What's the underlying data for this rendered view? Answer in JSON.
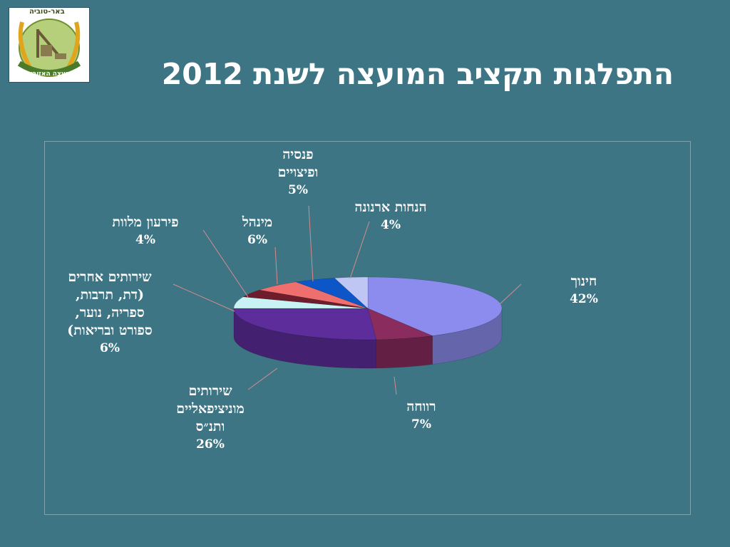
{
  "logo": {
    "top_text": "באר-טוביה",
    "bottom_text": "המועצה האזורית"
  },
  "title": "התפלגות תקציב המועצה לשנת 2012",
  "chart_data": {
    "type": "pie",
    "three_d": true,
    "slices": [
      {
        "label_lines": [
          "חינוך"
        ],
        "value": 42,
        "value_text": "42%",
        "color": "#8b8cee"
      },
      {
        "label_lines": [
          "רווחה"
        ],
        "value": 7,
        "value_text": "7%",
        "color": "#8a2d5e"
      },
      {
        "label_lines": [
          "שירותים",
          "מוניציפאליים",
          "ותנ״ס"
        ],
        "value": 26,
        "value_text": "26%",
        "color": "#5d2d9c"
      },
      {
        "label_lines": [
          "שירותים אחרים",
          "(דת, תרבות,",
          "ספריה, נוער,",
          "ספורט ובריאות)"
        ],
        "value": 6,
        "value_text": "6%",
        "color": "#c9f2f4"
      },
      {
        "label_lines": [
          "פירעון מלוות"
        ],
        "value": 4,
        "value_text": "4%",
        "color": "#6e1d2c"
      },
      {
        "label_lines": [
          "מינהל"
        ],
        "value": 6,
        "value_text": "6%",
        "color": "#ef6f6f"
      },
      {
        "label_lines": [
          "פנסיה",
          "ופיצויים"
        ],
        "value": 5,
        "value_text": "5%",
        "color": "#0d56c8"
      },
      {
        "label_lines": [
          "הנחות ארנונה"
        ],
        "value": 4,
        "value_text": "4%",
        "color": "#c0c6f3"
      }
    ]
  }
}
